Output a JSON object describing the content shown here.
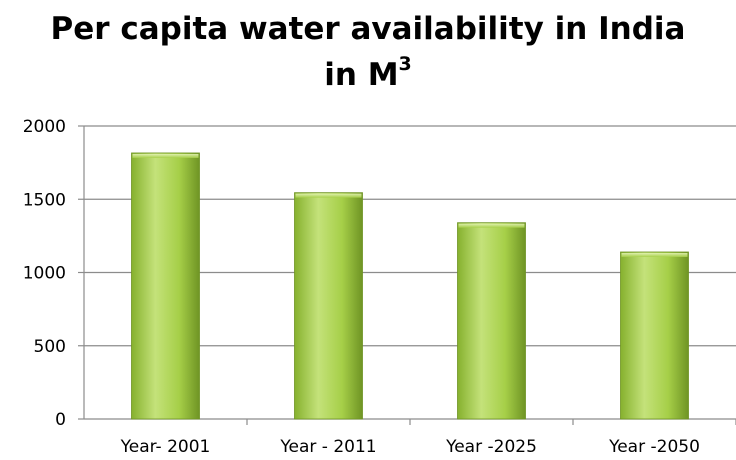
{
  "chart_data": {
    "type": "bar",
    "title": "Per capita water availability in India",
    "title_line2": "in M",
    "title_superscript": "3",
    "categories": [
      "Year- 2001",
      "Year - 2011",
      "Year -2025",
      "Year -2050"
    ],
    "values": [
      1816,
      1545,
      1340,
      1140
    ],
    "ylim": [
      0,
      2000
    ],
    "yticks": [
      0,
      500,
      1000,
      1500,
      2000
    ],
    "grid": true,
    "legend": false,
    "xlabel": "",
    "ylabel": "",
    "colors": {
      "bar_light": "#c4e27a",
      "bar_mid": "#9bc53d",
      "bar_dark": "#6f9424",
      "grid": "#8c8c8c",
      "axis": "#8c8c8c"
    }
  }
}
